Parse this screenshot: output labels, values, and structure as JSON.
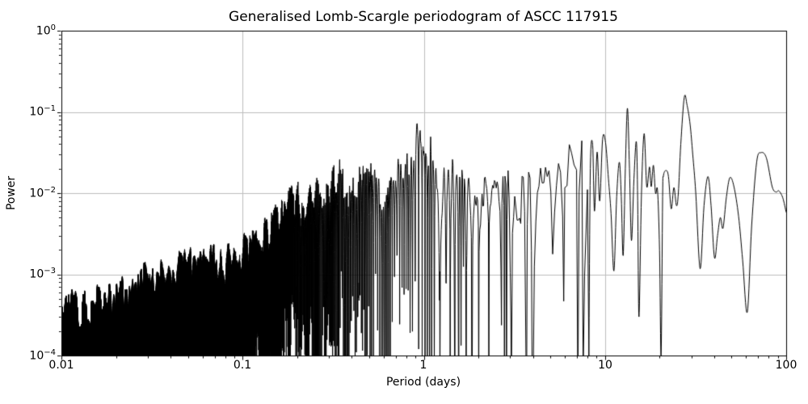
{
  "chart_data": {
    "type": "line",
    "title": "Generalised Lomb-Scargle periodogram of ASCC 117915",
    "xlabel": "Period (days)",
    "ylabel": "Power",
    "xscale": "log",
    "yscale": "log",
    "xlim": [
      0.01,
      100
    ],
    "ylim": [
      0.0001,
      1
    ],
    "grid": true,
    "grid_color": "#bdbdbd",
    "line_color": "#000000",
    "background_color": "#ffffff",
    "x_ticks": [
      0.01,
      0.1,
      1,
      10,
      100
    ],
    "x_tick_labels": [
      "0.01",
      "0.1",
      "1",
      "10",
      "100"
    ],
    "y_ticks": [
      1,
      0.1,
      0.01,
      0.001,
      0.0001
    ],
    "y_tick_labels": [
      {
        "m": "10",
        "e": "0"
      },
      {
        "m": "10",
        "e": "−1"
      },
      {
        "m": "10",
        "e": "−2"
      },
      {
        "m": "10",
        "e": "−3"
      },
      {
        "m": "10",
        "e": "−4"
      }
    ],
    "notable_peaks": [
      {
        "period_days": 1.0,
        "power": 0.11
      },
      {
        "period_days": 7.6,
        "power": 0.079
      },
      {
        "period_days": 13.3,
        "power": 0.111
      },
      {
        "period_days": 16.4,
        "power": 0.054
      },
      {
        "period_days": 27.4,
        "power": 0.152
      },
      {
        "period_days": 72.6,
        "power": 0.031
      }
    ],
    "noise_segment": {
      "comment_type": "dense noisy periodogram 0.01-8.15 days, values given as upper envelope in log10(period)/log10(power)",
      "f_min": 0.1227,
      "f_max": 100,
      "samples_per_cycle": 8,
      "window_period_days": 27,
      "mod_depth": 0.85,
      "null_depth": [
        1.2,
        4.7
      ],
      "seed": 11,
      "envelope": [
        [
          -2.0,
          -3.05
        ],
        [
          -1.8,
          -3.0
        ],
        [
          -1.6,
          -2.85
        ],
        [
          -1.4,
          -2.7
        ],
        [
          -1.2,
          -2.5
        ],
        [
          -1.0,
          -2.28
        ],
        [
          -0.88,
          -2.1
        ],
        [
          -0.78,
          -1.85
        ],
        [
          -0.7,
          -1.62
        ],
        [
          -0.64,
          -1.75
        ],
        [
          -0.6,
          -1.52
        ],
        [
          -0.55,
          -1.72
        ],
        [
          -0.48,
          -1.28
        ],
        [
          -0.43,
          -1.62
        ],
        [
          -0.37,
          -1.48
        ],
        [
          -0.3,
          -1.28
        ],
        [
          -0.23,
          -1.55
        ],
        [
          -0.16,
          -1.38
        ],
        [
          -0.08,
          -1.3
        ],
        [
          -0.04,
          -0.98
        ],
        [
          0.0,
          -0.95
        ],
        [
          0.05,
          -1.0
        ],
        [
          0.09,
          -1.22
        ],
        [
          0.14,
          -1.33
        ],
        [
          0.2,
          -1.45
        ],
        [
          0.3,
          -1.62
        ],
        [
          0.38,
          -1.7
        ],
        [
          0.46,
          -1.55
        ],
        [
          0.52,
          -1.5
        ],
        [
          0.56,
          -1.38
        ],
        [
          0.62,
          -1.42
        ],
        [
          0.69,
          -1.28
        ],
        [
          0.74,
          -1.22
        ],
        [
          0.8,
          -1.22
        ],
        [
          0.84,
          -1.35
        ],
        [
          0.88,
          -1.1
        ],
        [
          0.905,
          -1.45
        ]
      ]
    },
    "smooth_segment": {
      "comment_type": "resolved low-frequency part of periodogram, points [period_days, power]",
      "points": [
        [
          8.15,
          0.0001
        ],
        [
          8.3,
          0.02
        ],
        [
          8.55,
          0.039
        ],
        [
          8.75,
          0.006
        ],
        [
          9.05,
          0.032
        ],
        [
          9.35,
          0.008
        ],
        [
          9.7,
          0.046
        ],
        [
          10.07,
          0.042
        ],
        [
          10.45,
          0.015
        ],
        [
          10.8,
          0.0056
        ],
        [
          11.2,
          0.0011
        ],
        [
          11.6,
          0.009
        ],
        [
          12.0,
          0.024
        ],
        [
          12.3,
          0.009
        ],
        [
          12.6,
          0.0017
        ],
        [
          12.95,
          0.02
        ],
        [
          13.3,
          0.111
        ],
        [
          13.65,
          0.02
        ],
        [
          14.0,
          0.0026
        ],
        [
          14.45,
          0.015
        ],
        [
          14.9,
          0.043
        ],
        [
          15.15,
          0.008
        ],
        [
          15.4,
          0.0003
        ],
        [
          15.9,
          0.01
        ],
        [
          16.45,
          0.054
        ],
        [
          17.0,
          0.012
        ],
        [
          17.6,
          0.021
        ],
        [
          18.0,
          0.012
        ],
        [
          18.5,
          0.022
        ],
        [
          19.0,
          0.01
        ],
        [
          19.5,
          0.0108
        ],
        [
          20.0,
          0.002
        ],
        [
          20.4,
          0.0001
        ],
        [
          20.8,
          0.009
        ],
        [
          21.0,
          0.0162
        ],
        [
          21.7,
          0.019
        ],
        [
          22.4,
          0.016
        ],
        [
          23.2,
          0.0064
        ],
        [
          24.0,
          0.0117
        ],
        [
          24.8,
          0.007
        ],
        [
          25.4,
          0.01
        ],
        [
          26.2,
          0.04
        ],
        [
          27.4,
          0.152
        ],
        [
          28.4,
          0.12
        ],
        [
          29.5,
          0.07
        ],
        [
          30.5,
          0.03
        ],
        [
          31.7,
          0.01
        ],
        [
          33.5,
          0.00117
        ],
        [
          35.2,
          0.007
        ],
        [
          37.0,
          0.016
        ],
        [
          38.5,
          0.007
        ],
        [
          40.2,
          0.0016
        ],
        [
          41.8,
          0.003
        ],
        [
          43.3,
          0.005
        ],
        [
          44.8,
          0.0037
        ],
        [
          46.8,
          0.009
        ],
        [
          48.9,
          0.0155
        ],
        [
          51.5,
          0.012
        ],
        [
          54.6,
          0.0052
        ],
        [
          57.5,
          0.0015
        ],
        [
          61.0,
          0.00034
        ],
        [
          64.5,
          0.004
        ],
        [
          68.7,
          0.024
        ],
        [
          72.6,
          0.0315
        ],
        [
          77.8,
          0.027
        ],
        [
          83.7,
          0.012
        ],
        [
          88.0,
          0.0103
        ],
        [
          91.0,
          0.0107
        ],
        [
          95.7,
          0.0088
        ],
        [
          100.0,
          0.0058
        ]
      ]
    }
  }
}
